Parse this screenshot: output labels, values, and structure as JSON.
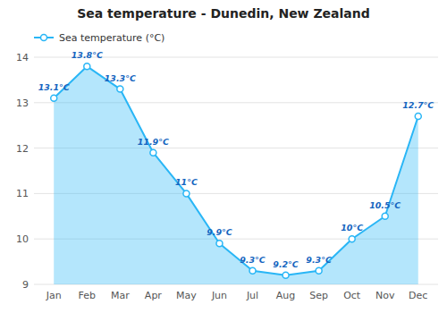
{
  "chart_data": {
    "type": "area",
    "title": "Sea temperature - Dunedin, New Zealand",
    "categories": [
      "Jan",
      "Feb",
      "Mar",
      "Apr",
      "May",
      "Jun",
      "Jul",
      "Aug",
      "Sep",
      "Oct",
      "Nov",
      "Dec"
    ],
    "series": [
      {
        "name": "Sea temperature (°C)",
        "color": "#29b6f6",
        "values": [
          13.1,
          13.8,
          13.3,
          11.9,
          11.0,
          9.9,
          9.3,
          9.2,
          9.3,
          10.0,
          10.5,
          12.7
        ],
        "value_labels": [
          "13.1°C",
          "13.8°C",
          "13.3°C",
          "11.9°C",
          "11°C",
          "9.9°C",
          "9.3°C",
          "9.2°C",
          "9.3°C",
          "10°C",
          "10.5°C",
          "12.7°C"
        ]
      }
    ],
    "ylim": [
      9,
      14
    ],
    "yticks": [
      9,
      10,
      11,
      12,
      13,
      14
    ],
    "grid": true,
    "legend": "upper left",
    "marker": "circle",
    "data_labels": true
  }
}
